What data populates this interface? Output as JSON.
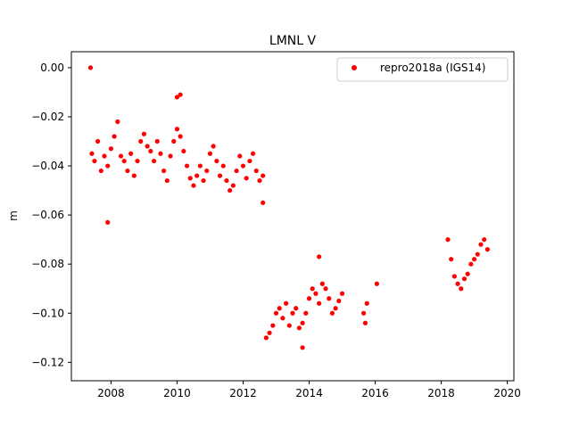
{
  "chart_data": {
    "type": "scatter",
    "title": "LMNL V",
    "xlabel": "",
    "ylabel": "m",
    "xlim": [
      2006.8,
      2020.2
    ],
    "ylim": [
      -0.1275,
      0.0065
    ],
    "xticks": [
      2008,
      2010,
      2012,
      2014,
      2016,
      2018,
      2020
    ],
    "xtick_labels": [
      "2008",
      "2010",
      "2012",
      "2014",
      "2016",
      "2018",
      "2020"
    ],
    "yticks": [
      0.0,
      -0.02,
      -0.04,
      -0.06,
      -0.08,
      -0.1,
      -0.12
    ],
    "ytick_labels": [
      "0.00",
      "−0.02",
      "−0.04",
      "−0.06",
      "−0.08",
      "−0.10",
      "−0.12"
    ],
    "grid": false,
    "legend_position": "top-right",
    "series": [
      {
        "name": "repro2018a (IGS14)",
        "color": "#ff0000",
        "marker": "circle",
        "x": [
          2007.38,
          2007.42,
          2007.5,
          2007.6,
          2007.7,
          2007.8,
          2007.9,
          2008.0,
          2008.1,
          2008.2,
          2008.3,
          2008.4,
          2008.5,
          2008.6,
          2008.7,
          2008.8,
          2008.9,
          2009.0,
          2009.1,
          2009.2,
          2009.3,
          2009.4,
          2009.5,
          2009.6,
          2009.7,
          2009.8,
          2009.9,
          2010.0,
          2010.1,
          2010.2,
          2010.3,
          2010.4,
          2010.5,
          2010.6,
          2010.7,
          2010.8,
          2010.9,
          2011.0,
          2011.1,
          2011.2,
          2011.3,
          2011.4,
          2011.5,
          2011.6,
          2011.7,
          2011.8,
          2011.9,
          2012.0,
          2012.1,
          2012.2,
          2012.3,
          2012.4,
          2012.5,
          2012.6,
          2012.7,
          2012.8,
          2012.9,
          2013.0,
          2013.1,
          2013.2,
          2013.3,
          2013.4,
          2013.5,
          2013.6,
          2013.7,
          2013.8,
          2013.9,
          2014.0,
          2014.1,
          2014.2,
          2014.3,
          2014.4,
          2014.5,
          2014.6,
          2014.7,
          2014.8,
          2014.9,
          2015.0,
          2015.65,
          2015.7,
          2015.75,
          2016.05,
          2018.2,
          2018.3,
          2018.4,
          2018.5,
          2018.6,
          2018.7,
          2018.8,
          2018.9,
          2019.0,
          2019.1,
          2019.2,
          2019.3,
          2019.4,
          2007.9,
          2010.0,
          2010.1,
          2012.6,
          2013.8,
          2014.3
        ],
        "y": [
          0.0,
          -0.035,
          -0.038,
          -0.03,
          -0.042,
          -0.036,
          -0.04,
          -0.033,
          -0.028,
          -0.022,
          -0.036,
          -0.038,
          -0.042,
          -0.035,
          -0.044,
          -0.038,
          -0.03,
          -0.027,
          -0.032,
          -0.034,
          -0.038,
          -0.03,
          -0.035,
          -0.042,
          -0.046,
          -0.036,
          -0.03,
          -0.025,
          -0.028,
          -0.034,
          -0.04,
          -0.045,
          -0.048,
          -0.044,
          -0.04,
          -0.046,
          -0.042,
          -0.035,
          -0.032,
          -0.038,
          -0.044,
          -0.04,
          -0.046,
          -0.05,
          -0.048,
          -0.042,
          -0.036,
          -0.04,
          -0.045,
          -0.038,
          -0.035,
          -0.042,
          -0.046,
          -0.044,
          -0.11,
          -0.108,
          -0.105,
          -0.1,
          -0.098,
          -0.102,
          -0.096,
          -0.105,
          -0.1,
          -0.098,
          -0.106,
          -0.104,
          -0.1,
          -0.094,
          -0.09,
          -0.092,
          -0.096,
          -0.088,
          -0.09,
          -0.094,
          -0.1,
          -0.098,
          -0.095,
          -0.092,
          -0.1,
          -0.104,
          -0.096,
          -0.088,
          -0.07,
          -0.078,
          -0.085,
          -0.088,
          -0.09,
          -0.086,
          -0.084,
          -0.08,
          -0.078,
          -0.076,
          -0.072,
          -0.07,
          -0.074,
          -0.063,
          -0.012,
          -0.011,
          -0.055,
          -0.114,
          -0.077
        ]
      }
    ]
  }
}
